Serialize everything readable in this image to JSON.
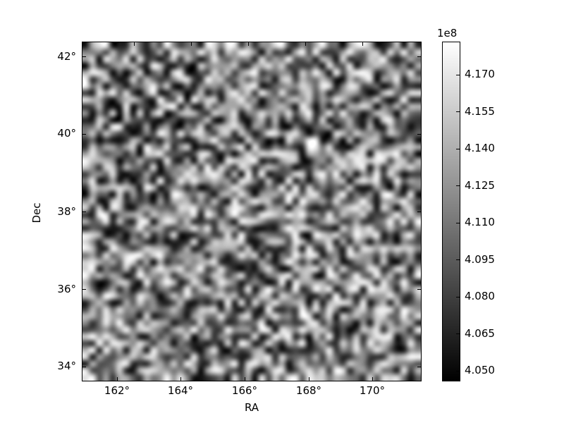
{
  "chart_data": {
    "type": "heatmap",
    "title": "",
    "xlabel": "RA",
    "ylabel": "Dec",
    "colormap": "gray",
    "interpolation": "bilinear",
    "background_color": "#ffffff",
    "spine_color": "#000000",
    "xlim_deg": [
      160.9,
      171.6
    ],
    "ylim_deg": [
      33.6,
      42.4
    ],
    "x_ticks_bottom": [
      {
        "label": "162°",
        "pos": 0.1015
      },
      {
        "label": "164°",
        "pos": 0.2903
      },
      {
        "label": "166°",
        "pos": 0.4792
      },
      {
        "label": "168°",
        "pos": 0.6681
      },
      {
        "label": "170°",
        "pos": 0.8569
      }
    ],
    "x_ticks_top_pos": [
      0.1527,
      0.3208,
      0.4902,
      0.6583,
      0.8265
    ],
    "y_ticks": [
      {
        "label": "42°",
        "pos": 0.0417
      },
      {
        "label": "40°",
        "pos": 0.2708
      },
      {
        "label": "38°",
        "pos": 0.5
      },
      {
        "label": "36°",
        "pos": 0.7292
      },
      {
        "label": "34°",
        "pos": 0.9583
      }
    ],
    "grid": {
      "rows": 50,
      "cols": 50,
      "distribution": "uniform random noise",
      "seed": 1234
    },
    "colorbar": {
      "offset_label": "1e8",
      "scale": 100000000,
      "vmin": 4.046,
      "vmax": 4.1831,
      "ticks": [
        {
          "label": "4.170",
          "value": 4.17
        },
        {
          "label": "4.155",
          "value": 4.155
        },
        {
          "label": "4.140",
          "value": 4.14
        },
        {
          "label": "4.125",
          "value": 4.125
        },
        {
          "label": "4.110",
          "value": 4.11
        },
        {
          "label": "4.095",
          "value": 4.095
        },
        {
          "label": "4.080",
          "value": 4.08
        },
        {
          "label": "4.065",
          "value": 4.065
        },
        {
          "label": "4.050",
          "value": 4.05
        }
      ]
    },
    "legend": null,
    "grid_lines": false
  }
}
